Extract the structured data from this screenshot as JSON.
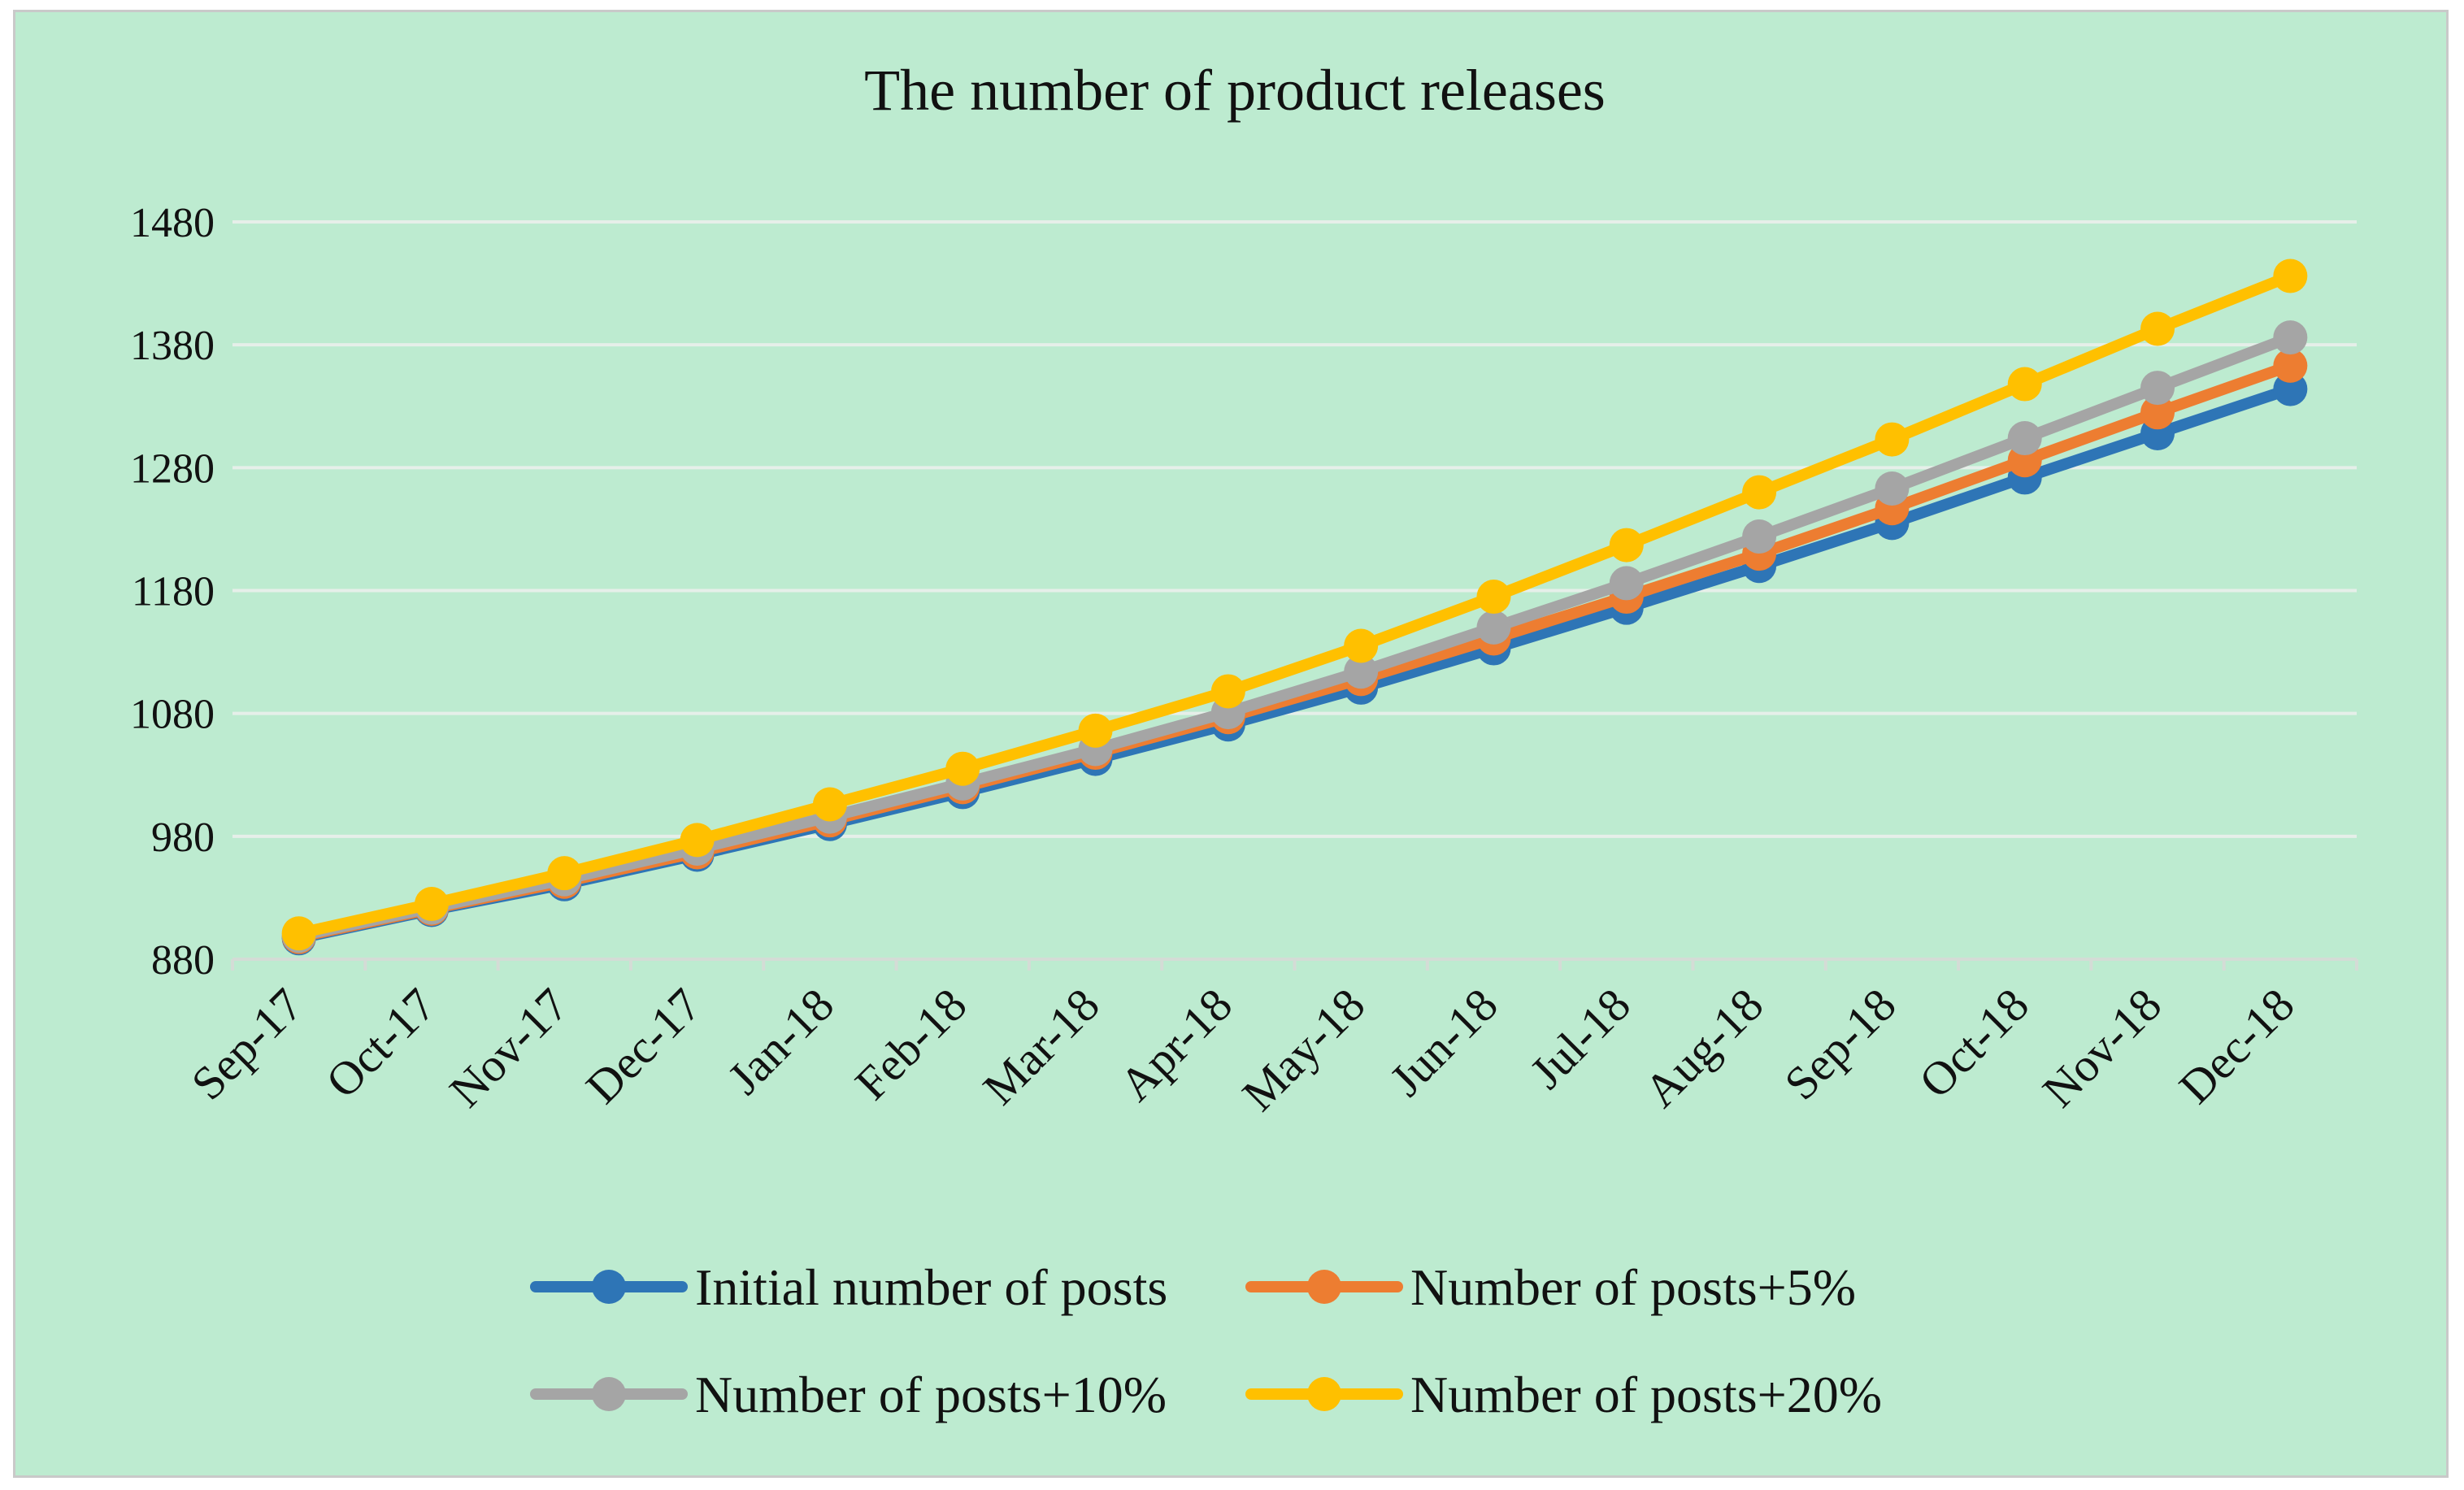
{
  "chart_data": {
    "type": "line",
    "title": "The number of product releases",
    "xlabel": "",
    "ylabel": "",
    "ylim": [
      880,
      1480
    ],
    "yticks": [
      880,
      980,
      1080,
      1180,
      1280,
      1380,
      1480
    ],
    "ytick_labels": [
      "880",
      "980",
      "1080",
      "1180",
      "1280",
      "1380",
      "1480"
    ],
    "grid": true,
    "legend_position": "bottom",
    "categories": [
      "Sep-17",
      "Oct-17",
      "Nov-17",
      "Dec-17",
      "Jan-18",
      "Feb-18",
      "Mar-18",
      "Apr-18",
      "May-18",
      "Jun-18",
      "Jul-18",
      "Aug-18",
      "Sep-18",
      "Oct-18",
      "Nov-18",
      "Dec-18"
    ],
    "series": [
      {
        "name": "Initial number of posts",
        "color": "#2e75b6",
        "values": [
          897,
          920,
          941,
          965,
          990,
          1016,
          1043,
          1071,
          1101,
          1133,
          1166,
          1200,
          1235,
          1272,
          1308,
          1344
        ]
      },
      {
        "name": "Number of posts+5%",
        "color": "#ed7d31",
        "values": [
          898,
          921,
          943,
          967,
          993,
          1020,
          1048,
          1077,
          1108,
          1141,
          1175,
          1210,
          1247,
          1286,
          1325,
          1363
        ]
      },
      {
        "name": "Number of posts+10%",
        "color": "#a5a5a5",
        "values": [
          899,
          922,
          945,
          970,
          996,
          1023,
          1051,
          1081,
          1114,
          1150,
          1186,
          1224,
          1263,
          1304,
          1345,
          1386
        ]
      },
      {
        "name": "Number of posts+20%",
        "color": "#ffc000",
        "values": [
          901,
          925,
          950,
          977,
          1006,
          1035,
          1066,
          1098,
          1135,
          1175,
          1217,
          1260,
          1303,
          1348,
          1393,
          1436
        ]
      }
    ]
  }
}
